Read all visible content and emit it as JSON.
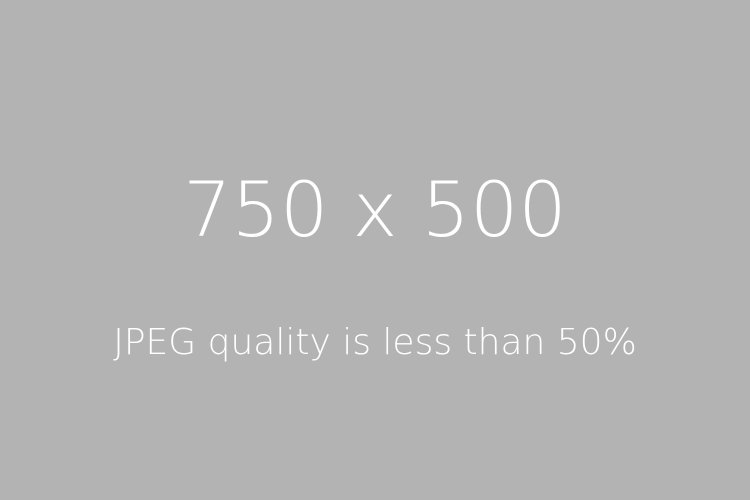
{
  "placeholder": {
    "dimensions_text": "750 x 500",
    "caption": "JPEG quality is less than 50%",
    "background_color": "#b3b3b3",
    "text_color": "#ffffff"
  }
}
